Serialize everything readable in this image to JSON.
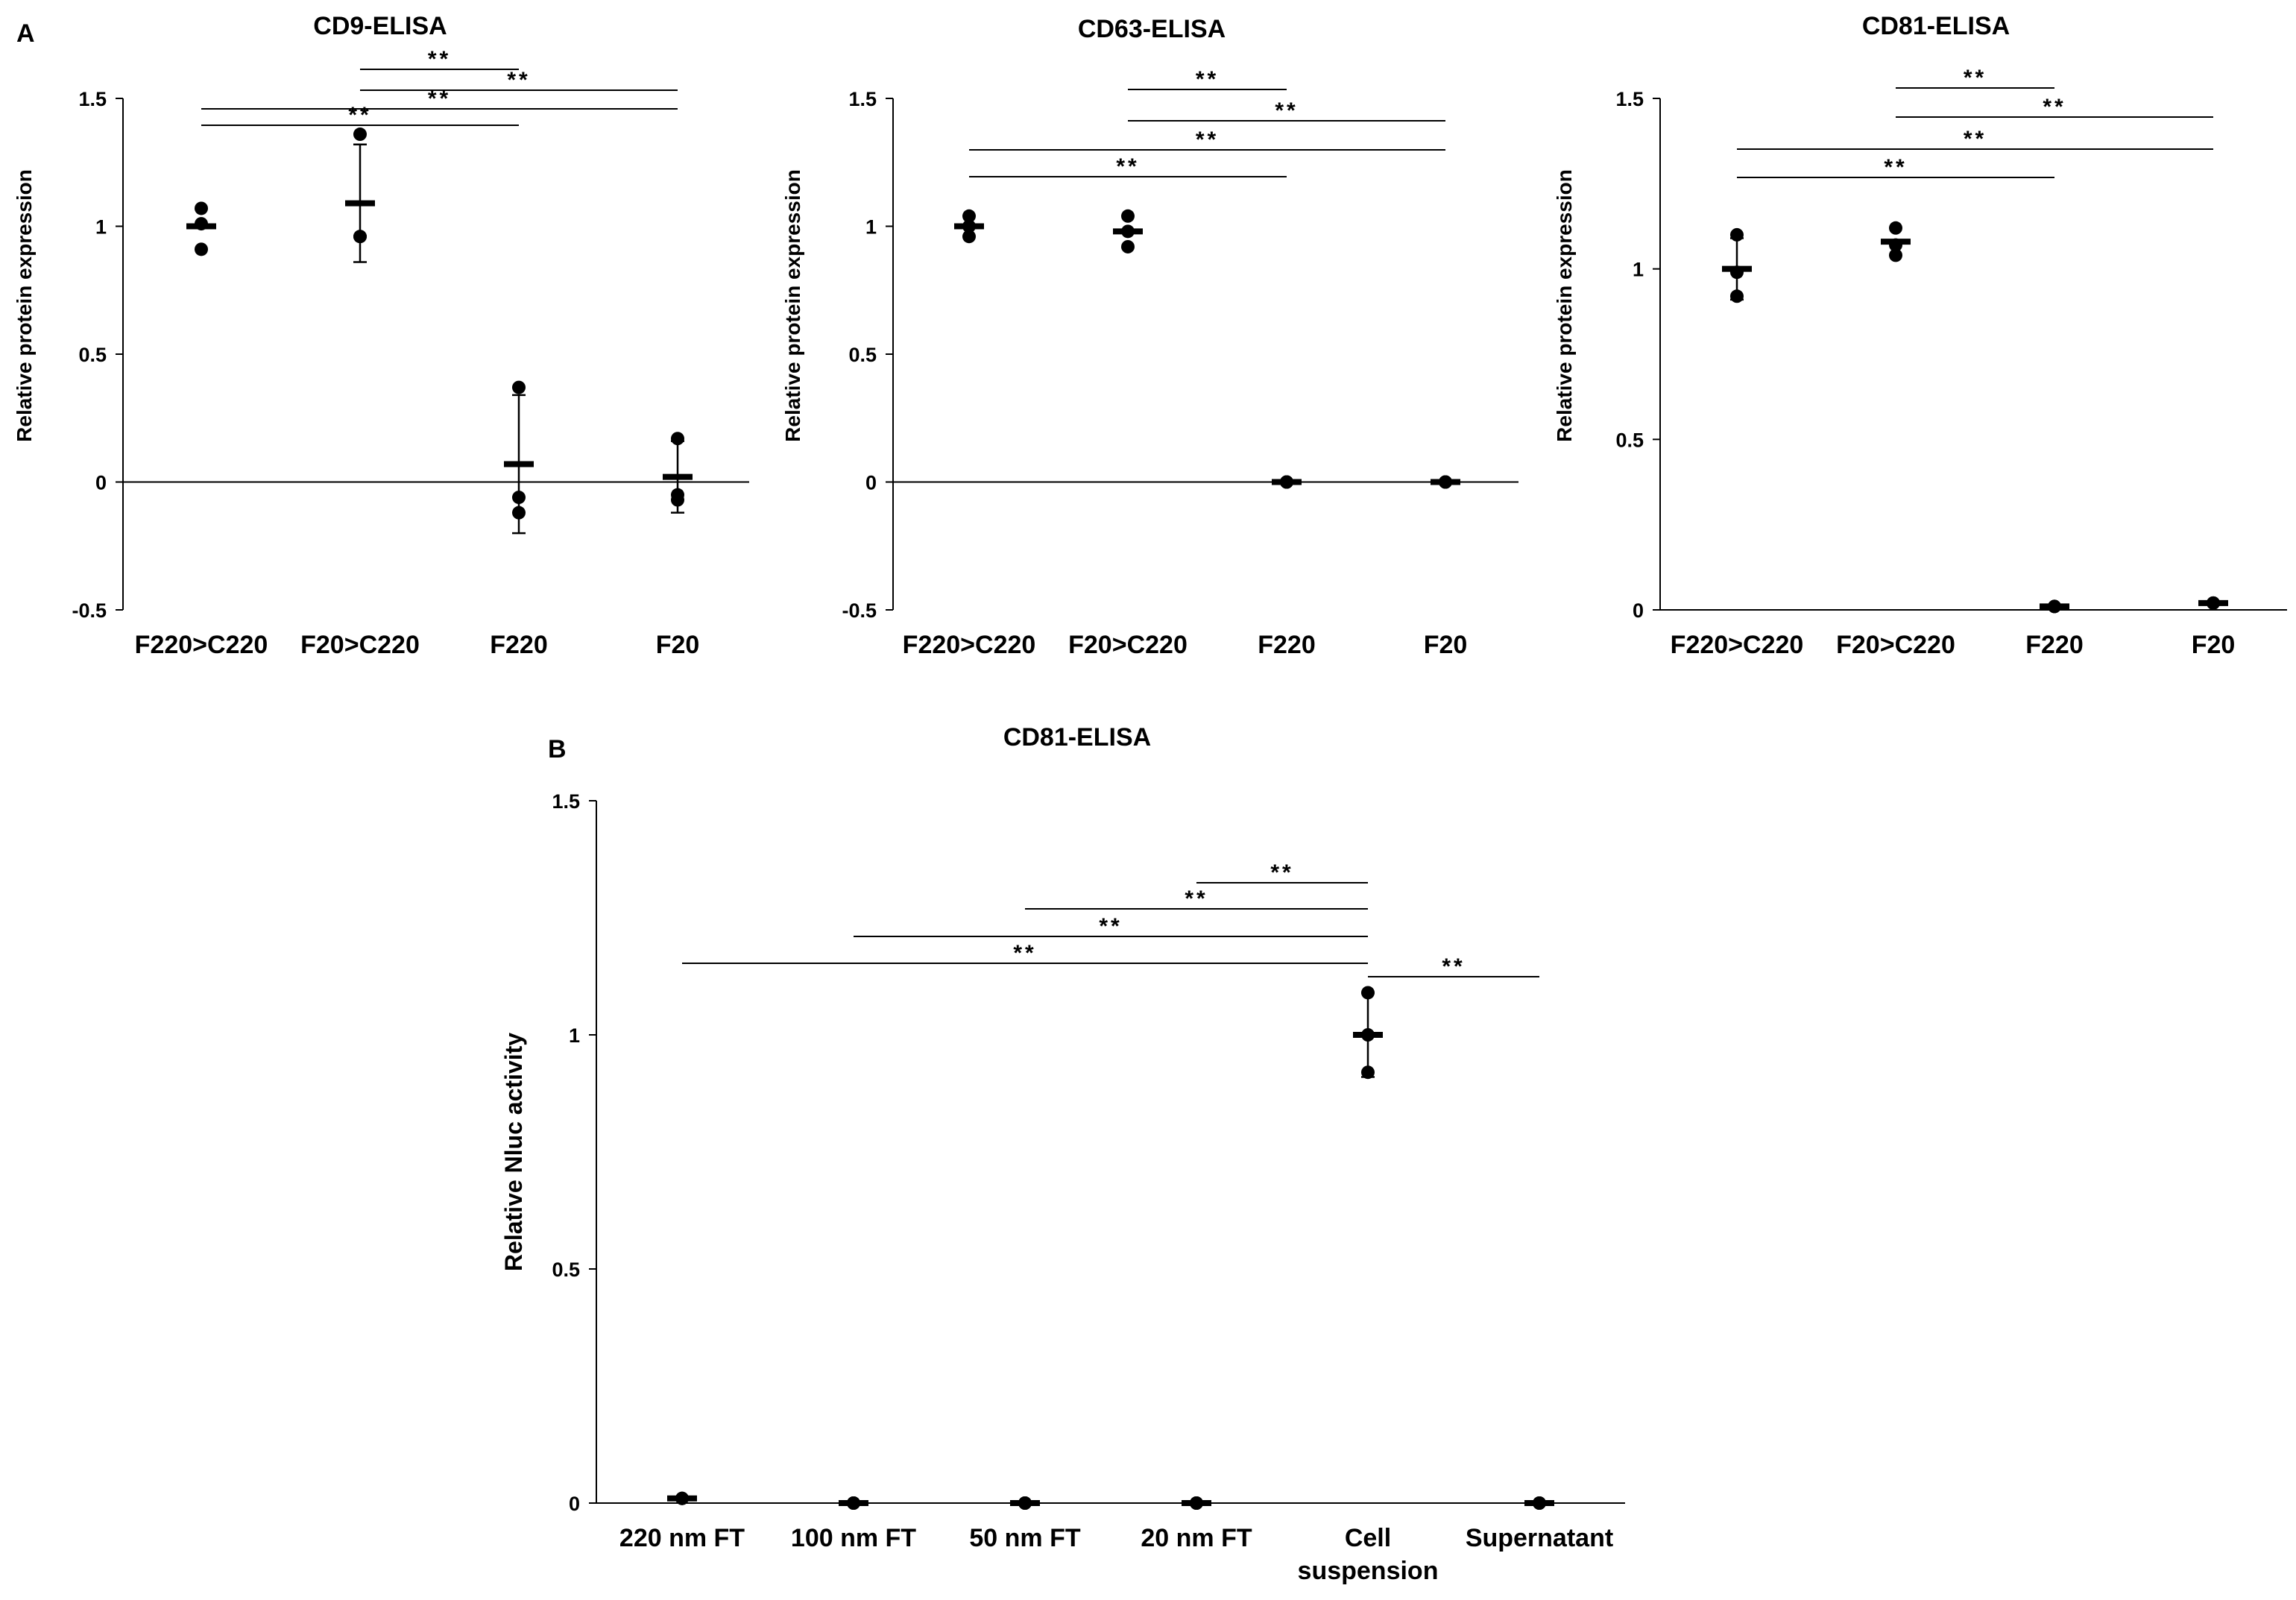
{
  "panels": [
    {
      "id": "A",
      "label": "A"
    },
    {
      "id": "B",
      "label": "B"
    }
  ],
  "chart_data": [
    {
      "panel": "A",
      "type": "scatter",
      "title": "CD9-ELISA",
      "ylabel": "Relative protein expression",
      "xlabel": "",
      "ylim": [
        -0.5,
        1.5
      ],
      "yticks": [
        -0.5,
        0,
        0.5,
        1,
        1.5
      ],
      "ytick_labels": [
        "-0.5",
        "0",
        "0.5",
        "1",
        "1.5"
      ],
      "categories": [
        "F220>C220",
        "F20>C220",
        "F220",
        "F20"
      ],
      "points": [
        [
          1.07,
          1.01,
          0.91
        ],
        [
          1.36,
          0.96,
          0.96
        ],
        [
          0.37,
          -0.06,
          -0.12
        ],
        [
          0.17,
          -0.05,
          -0.07
        ]
      ],
      "mean": [
        1.0,
        1.09,
        0.07,
        0.02
      ],
      "sd": [
        0.0,
        0.23,
        0.27,
        0.14
      ],
      "zero_line": true,
      "significance": [
        {
          "from": 2,
          "to": 3,
          "label": "**"
        },
        {
          "from": 2,
          "to": 4,
          "label": "**"
        },
        {
          "from": 1,
          "to": 4,
          "label": "**"
        },
        {
          "from": 1,
          "to": 3,
          "label": "**"
        }
      ]
    },
    {
      "panel": "A",
      "type": "scatter",
      "title": "CD63-ELISA",
      "ylabel": "Relative protein expression",
      "xlabel": "",
      "ylim": [
        -0.5,
        1.5
      ],
      "yticks": [
        -0.5,
        0,
        0.5,
        1,
        1.5
      ],
      "ytick_labels": [
        "-0.5",
        "0",
        "0.5",
        "1",
        "1.5"
      ],
      "categories": [
        "F220>C220",
        "F20>C220",
        "F220",
        "F20"
      ],
      "points": [
        [
          1.04,
          1.0,
          0.96
        ],
        [
          1.04,
          0.98,
          0.92
        ],
        [
          0.0,
          0.0,
          0.0
        ],
        [
          0.0,
          0.0,
          0.0
        ]
      ],
      "mean": [
        1.0,
        0.98,
        0.0,
        0.0
      ],
      "sd": [
        0.0,
        0.0,
        0.0,
        0.0
      ],
      "zero_line": true,
      "significance": [
        {
          "from": 2,
          "to": 3,
          "label": "**"
        },
        {
          "from": 2,
          "to": 4,
          "label": "**"
        },
        {
          "from": 1,
          "to": 4,
          "label": "**"
        },
        {
          "from": 1,
          "to": 3,
          "label": "**"
        }
      ]
    },
    {
      "panel": "A",
      "type": "scatter",
      "title": "CD81-ELISA",
      "ylabel": "Relative protein expression",
      "xlabel": "",
      "ylim": [
        0,
        1.5
      ],
      "yticks": [
        0,
        0.5,
        1,
        1.5
      ],
      "ytick_labels": [
        "0",
        "0.5",
        "1",
        "1.5"
      ],
      "categories": [
        "F220>C220",
        "F20>C220",
        "F220",
        "F20"
      ],
      "points": [
        [
          1.1,
          0.99,
          0.92
        ],
        [
          1.12,
          1.07,
          1.04
        ],
        [
          0.01,
          0.01,
          0.01
        ],
        [
          0.02,
          0.02,
          0.02
        ]
      ],
      "mean": [
        1.0,
        1.08,
        0.01,
        0.02
      ],
      "sd": [
        0.09,
        0.0,
        0.0,
        0.0
      ],
      "zero_line": false,
      "significance": [
        {
          "from": 2,
          "to": 3,
          "label": "**"
        },
        {
          "from": 2,
          "to": 4,
          "label": "**"
        },
        {
          "from": 1,
          "to": 4,
          "label": "**"
        },
        {
          "from": 1,
          "to": 3,
          "label": "**"
        }
      ]
    },
    {
      "panel": "B",
      "type": "scatter",
      "title": "CD81-ELISA",
      "ylabel": "Relative Nluc activity",
      "xlabel": "",
      "ylim": [
        0,
        1.5
      ],
      "yticks": [
        0,
        0.5,
        1,
        1.5
      ],
      "ytick_labels": [
        "0",
        "0.5",
        "1",
        "1.5"
      ],
      "categories": [
        [
          "220 nm FT"
        ],
        [
          "100 nm FT"
        ],
        [
          "50 nm FT"
        ],
        [
          "20 nm FT"
        ],
        [
          "Cell",
          "suspension"
        ],
        [
          "Supernatant"
        ]
      ],
      "points": [
        [
          0.01,
          0.01,
          0.01
        ],
        [
          0.0,
          0.0,
          0.0
        ],
        [
          0.0,
          0.0,
          0.0
        ],
        [
          0.0,
          0.0,
          0.0
        ],
        [
          1.09,
          1.0,
          0.92
        ],
        [
          0.0,
          0.0,
          0.0
        ]
      ],
      "mean": [
        0.01,
        0.0,
        0.0,
        0.0,
        1.0,
        0.0
      ],
      "sd": [
        0.0,
        0.0,
        0.0,
        0.0,
        0.09,
        0.0
      ],
      "zero_line": false,
      "significance": [
        {
          "from": 1,
          "to": 5,
          "label": "**"
        },
        {
          "from": 2,
          "to": 5,
          "label": "**"
        },
        {
          "from": 3,
          "to": 5,
          "label": "**"
        },
        {
          "from": 4,
          "to": 5,
          "label": "**"
        },
        {
          "from": 5,
          "to": 6,
          "label": "**"
        }
      ]
    }
  ]
}
